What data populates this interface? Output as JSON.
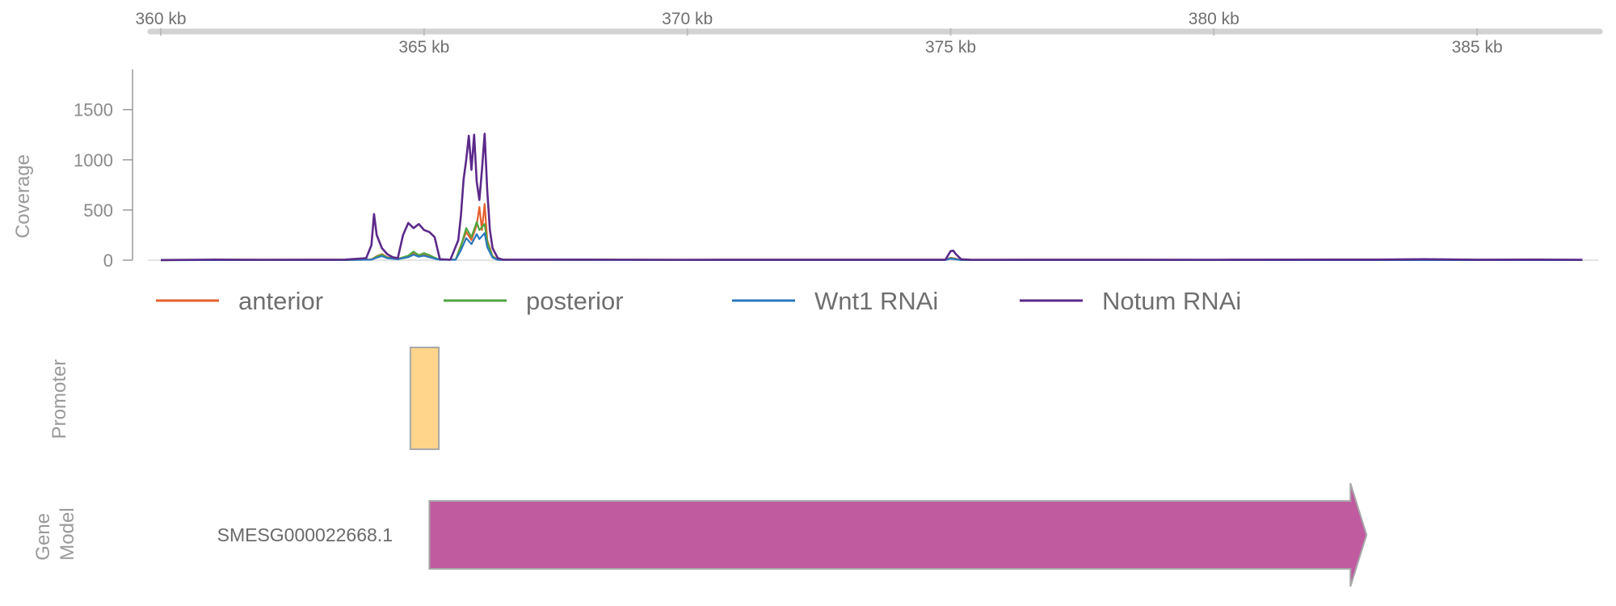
{
  "chart_data": {
    "type": "line",
    "genome_axis": {
      "unit": "kb",
      "range": [
        359.8,
        387.3
      ],
      "major_ticks": [
        {
          "value": 360,
          "label": "360 kb"
        },
        {
          "value": 370,
          "label": "370 kb"
        },
        {
          "value": 380,
          "label": "380 kb"
        }
      ],
      "minor_ticks": [
        {
          "value": 365,
          "label": "365 kb"
        },
        {
          "value": 375,
          "label": "375 kb"
        },
        {
          "value": 385,
          "label": "385 kb"
        }
      ]
    },
    "coverage": {
      "ylabel": "Coverage",
      "ylim": [
        0,
        1900
      ],
      "yticks": [
        {
          "value": 0,
          "label": "0"
        },
        {
          "value": 500,
          "label": "500"
        },
        {
          "value": 1000,
          "label": "1000"
        },
        {
          "value": 1500,
          "label": "1500"
        }
      ],
      "legend_position": "bottom",
      "series": [
        {
          "name": "anterior",
          "color": "#e5602d",
          "points": [
            [
              360,
              0
            ],
            [
              362,
              4
            ],
            [
              363.5,
              3
            ],
            [
              364.0,
              8
            ],
            [
              364.1,
              40
            ],
            [
              364.2,
              60
            ],
            [
              364.3,
              30
            ],
            [
              364.5,
              15
            ],
            [
              364.7,
              40
            ],
            [
              364.8,
              70
            ],
            [
              364.9,
              45
            ],
            [
              365.0,
              55
            ],
            [
              365.1,
              40
            ],
            [
              365.2,
              20
            ],
            [
              365.3,
              5
            ],
            [
              365.6,
              5
            ],
            [
              365.7,
              150
            ],
            [
              365.8,
              280
            ],
            [
              365.9,
              200
            ],
            [
              366.0,
              350
            ],
            [
              366.05,
              530
            ],
            [
              366.1,
              300
            ],
            [
              366.15,
              560
            ],
            [
              366.2,
              200
            ],
            [
              366.3,
              40
            ],
            [
              366.4,
              5
            ],
            [
              370,
              3
            ],
            [
              374.9,
              3
            ],
            [
              375.0,
              25
            ],
            [
              375.1,
              15
            ],
            [
              375.2,
              2
            ],
            [
              387.0,
              2
            ]
          ]
        },
        {
          "name": "posterior",
          "color": "#4fa53d",
          "points": [
            [
              360,
              0
            ],
            [
              362,
              3
            ],
            [
              363.5,
              2
            ],
            [
              364.0,
              6
            ],
            [
              364.1,
              35
            ],
            [
              364.2,
              55
            ],
            [
              364.3,
              25
            ],
            [
              364.5,
              12
            ],
            [
              364.7,
              45
            ],
            [
              364.8,
              85
            ],
            [
              364.9,
              50
            ],
            [
              365.0,
              70
            ],
            [
              365.1,
              50
            ],
            [
              365.2,
              25
            ],
            [
              365.3,
              5
            ],
            [
              365.6,
              5
            ],
            [
              365.7,
              140
            ],
            [
              365.8,
              320
            ],
            [
              365.9,
              230
            ],
            [
              366.0,
              380
            ],
            [
              366.05,
              300
            ],
            [
              366.1,
              330
            ],
            [
              366.15,
              360
            ],
            [
              366.2,
              180
            ],
            [
              366.3,
              35
            ],
            [
              366.4,
              4
            ],
            [
              370,
              3
            ],
            [
              374.9,
              3
            ],
            [
              375.0,
              20
            ],
            [
              375.1,
              10
            ],
            [
              375.2,
              2
            ],
            [
              387.0,
              2
            ]
          ]
        },
        {
          "name": "Wnt1 RNAi",
          "color": "#2a78bf",
          "points": [
            [
              360,
              0
            ],
            [
              362,
              2
            ],
            [
              363.5,
              2
            ],
            [
              364.0,
              5
            ],
            [
              364.1,
              25
            ],
            [
              364.2,
              40
            ],
            [
              364.3,
              20
            ],
            [
              364.5,
              10
            ],
            [
              364.7,
              30
            ],
            [
              364.8,
              55
            ],
            [
              364.9,
              35
            ],
            [
              365.0,
              45
            ],
            [
              365.1,
              30
            ],
            [
              365.2,
              15
            ],
            [
              365.3,
              4
            ],
            [
              365.6,
              4
            ],
            [
              365.7,
              100
            ],
            [
              365.8,
              220
            ],
            [
              365.9,
              160
            ],
            [
              366.0,
              260
            ],
            [
              366.05,
              210
            ],
            [
              366.1,
              240
            ],
            [
              366.15,
              270
            ],
            [
              366.2,
              130
            ],
            [
              366.3,
              25
            ],
            [
              366.4,
              3
            ],
            [
              370,
              2
            ],
            [
              374.9,
              2
            ],
            [
              375.0,
              15
            ],
            [
              375.1,
              8
            ],
            [
              375.2,
              2
            ],
            [
              387.0,
              1
            ]
          ]
        },
        {
          "name": "Notum RNAi",
          "color": "#5c2a8a",
          "points": [
            [
              360,
              2
            ],
            [
              361,
              6
            ],
            [
              362,
              4
            ],
            [
              363,
              5
            ],
            [
              363.5,
              6
            ],
            [
              363.9,
              20
            ],
            [
              364.0,
              150
            ],
            [
              364.05,
              460
            ],
            [
              364.1,
              250
            ],
            [
              364.2,
              120
            ],
            [
              364.3,
              60
            ],
            [
              364.4,
              30
            ],
            [
              364.5,
              20
            ],
            [
              364.6,
              250
            ],
            [
              364.7,
              370
            ],
            [
              364.8,
              320
            ],
            [
              364.9,
              360
            ],
            [
              365.0,
              300
            ],
            [
              365.1,
              280
            ],
            [
              365.2,
              230
            ],
            [
              365.3,
              10
            ],
            [
              365.5,
              5
            ],
            [
              365.65,
              200
            ],
            [
              365.7,
              450
            ],
            [
              365.75,
              800
            ],
            [
              365.8,
              1000
            ],
            [
              365.85,
              1240
            ],
            [
              365.9,
              900
            ],
            [
              365.95,
              1250
            ],
            [
              366.0,
              780
            ],
            [
              366.05,
              600
            ],
            [
              366.1,
              900
            ],
            [
              366.15,
              1260
            ],
            [
              366.2,
              700
            ],
            [
              366.25,
              300
            ],
            [
              366.3,
              120
            ],
            [
              366.4,
              20
            ],
            [
              366.5,
              5
            ],
            [
              368,
              6
            ],
            [
              370,
              4
            ],
            [
              372,
              5
            ],
            [
              374.9,
              5
            ],
            [
              375.0,
              90
            ],
            [
              375.05,
              95
            ],
            [
              375.1,
              60
            ],
            [
              375.2,
              10
            ],
            [
              375.4,
              4
            ],
            [
              378,
              5
            ],
            [
              380,
              4
            ],
            [
              383,
              6
            ],
            [
              384,
              10
            ],
            [
              385,
              5
            ],
            [
              386,
              6
            ],
            [
              387.0,
              4
            ]
          ]
        }
      ]
    },
    "promoter": {
      "label": "Promoter",
      "start": 364.74,
      "end": 365.28,
      "color": "#ffd58b"
    },
    "gene_model": {
      "label_lines": [
        "Gene",
        "Model"
      ],
      "gene_id": "SMESG000022668.1",
      "start": 365.1,
      "end": 382.9,
      "strand": "+",
      "color": "#c05ba0"
    }
  }
}
